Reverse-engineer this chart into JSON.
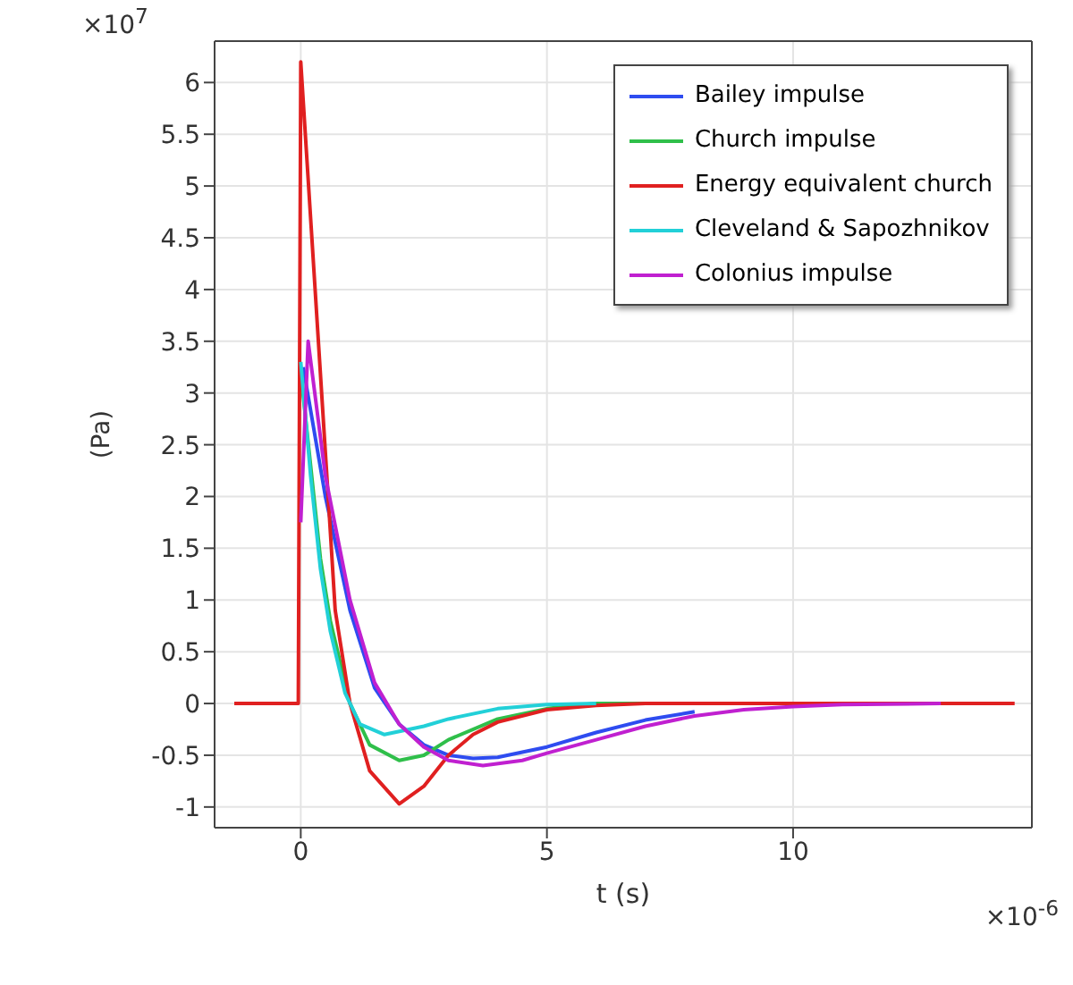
{
  "chart_data": {
    "type": "line",
    "xlabel": "t (s)",
    "ylabel": "(Pa)",
    "annotations": [
      "×10$^{7}$",
      "×10$^{-6}$"
    ],
    "xlim": [
      -1.75,
      14.85
    ],
    "ylim": [
      -1.2,
      6.4
    ],
    "xticks": [
      0,
      5,
      10
    ],
    "yticks": [
      -1,
      -0.5,
      0,
      0.5,
      1,
      1.5,
      2,
      2.5,
      3,
      3.5,
      4,
      4.5,
      5,
      5.5,
      6
    ],
    "grid": true,
    "legend": "top right",
    "marker": "none",
    "line_style": "solid",
    "series": [
      {
        "name": "Bailey impulse",
        "color": "#2e4cf0",
        "x": [
          0.05,
          0.5,
          1,
          1.5,
          2,
          2.5,
          3,
          3.5,
          4,
          5,
          6,
          7,
          8
        ],
        "values": [
          3.25,
          2,
          0.9,
          0.15,
          -0.2,
          -0.4,
          -0.5,
          -0.53,
          -0.52,
          -0.42,
          -0.28,
          -0.16,
          -0.08
        ]
      },
      {
        "name": "Church impulse",
        "color": "#2fbf4a",
        "x": [
          0,
          0.2,
          0.4,
          0.6,
          1,
          1.4,
          2,
          2.5,
          3,
          4,
          5,
          6,
          7
        ],
        "values": [
          3.2,
          2.3,
          1.4,
          0.8,
          0,
          -0.4,
          -0.55,
          -0.5,
          -0.35,
          -0.15,
          -0.05,
          0,
          0
        ]
      },
      {
        "name": "Energy equivalent church",
        "color": "#e02020",
        "x": [
          -1.35,
          -0.05,
          0,
          0.55,
          0.7,
          1,
          1.4,
          2,
          2.5,
          3,
          3.5,
          4,
          5,
          6,
          7,
          14.5
        ],
        "values": [
          0,
          0,
          6.2,
          2.05,
          0.9,
          0,
          -0.65,
          -0.97,
          -0.8,
          -0.5,
          -0.3,
          -0.18,
          -0.06,
          -0.02,
          0,
          0
        ]
      },
      {
        "name": "Cleveland & Sapozhnikov",
        "color": "#22d0d8",
        "x": [
          0,
          0.2,
          0.4,
          0.6,
          0.9,
          1.2,
          1.7,
          2.5,
          3,
          4,
          5,
          6
        ],
        "values": [
          3.3,
          2.2,
          1.3,
          0.7,
          0.1,
          -0.2,
          -0.3,
          -0.22,
          -0.15,
          -0.05,
          -0.01,
          0
        ]
      },
      {
        "name": "Colonius impulse",
        "color": "#c020d0",
        "x": [
          0,
          0.15,
          0.5,
          1,
          1.5,
          2,
          2.5,
          3,
          3.7,
          4.5,
          5,
          6,
          7,
          8,
          9,
          10,
          11,
          13
        ],
        "values": [
          1.75,
          3.5,
          2.2,
          1,
          0.2,
          -0.2,
          -0.42,
          -0.55,
          -0.6,
          -0.55,
          -0.48,
          -0.35,
          -0.22,
          -0.12,
          -0.06,
          -0.03,
          -0.01,
          0
        ]
      }
    ]
  }
}
